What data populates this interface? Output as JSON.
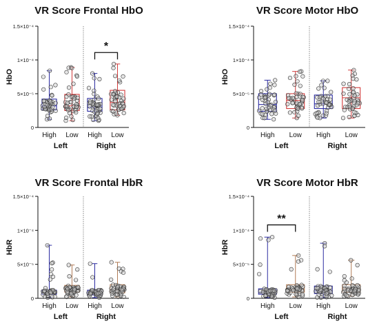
{
  "chart_data": [
    {
      "type": "box",
      "title": "VR Score Frontal HbO",
      "ylabel": "HbO",
      "ylim": [
        0,
        0.00015
      ],
      "y_ticks": [
        {
          "value": 0,
          "label": "0"
        },
        {
          "value": 5e-05,
          "label": "5×10⁻⁵"
        },
        {
          "value": 0.0001,
          "label": "1×10⁻⁴"
        },
        {
          "value": 0.00015,
          "label": "1.5×10⁻⁴"
        }
      ],
      "categories": [
        "High",
        "Low",
        "High",
        "Low"
      ],
      "groups": [
        "Left",
        "Right"
      ],
      "series_colors": [
        "#2a2aa0",
        "#d23a3a",
        "#2a2aa0",
        "#d23a3a"
      ],
      "series": [
        {
          "group": "Left",
          "category": "High",
          "min": 1.2e-05,
          "q1": 2.6e-05,
          "median": 3.2e-05,
          "q3": 4.2e-05,
          "max": 8.4e-05
        },
        {
          "group": "Left",
          "category": "Low",
          "min": 1e-05,
          "q1": 2.5e-05,
          "median": 3.2e-05,
          "q3": 4.9e-05,
          "max": 8.9e-05
        },
        {
          "group": "Right",
          "category": "High",
          "min": 1e-05,
          "q1": 2.4e-05,
          "median": 3e-05,
          "q3": 4.3e-05,
          "max": 8e-05
        },
        {
          "group": "Right",
          "category": "Low",
          "min": 1.8e-05,
          "q1": 2.6e-05,
          "median": 3.7e-05,
          "q3": 5.5e-05,
          "max": 9.4e-05
        }
      ],
      "significance": [
        {
          "from": 2,
          "to": 3,
          "label": "*",
          "y": 0.000111
        }
      ]
    },
    {
      "type": "box",
      "title": "VR Score Motor HbO",
      "ylabel": "HbO",
      "ylim": [
        0,
        0.00015
      ],
      "y_ticks": [
        {
          "value": 0,
          "label": "0"
        },
        {
          "value": 5e-05,
          "label": "5×10⁻⁵"
        },
        {
          "value": 0.0001,
          "label": "1×10⁻⁴"
        },
        {
          "value": 0.00015,
          "label": "1.5×10⁻⁴"
        }
      ],
      "categories": [
        "High",
        "Low",
        "High",
        "Low"
      ],
      "groups": [
        "Left",
        "Right"
      ],
      "series_colors": [
        "#2a2aa0",
        "#d23a3a",
        "#2a2aa0",
        "#d23a3a"
      ],
      "series": [
        {
          "group": "Left",
          "category": "High",
          "min": 1.2e-05,
          "q1": 2.4e-05,
          "median": 3.4e-05,
          "q3": 5e-05,
          "max": 7e-05
        },
        {
          "group": "Left",
          "category": "Low",
          "min": 1.4e-05,
          "q1": 2.8e-05,
          "median": 4e-05,
          "q3": 5e-05,
          "max": 8.3e-05
        },
        {
          "group": "Right",
          "category": "High",
          "min": 1.4e-05,
          "q1": 2.8e-05,
          "median": 3.5e-05,
          "q3": 4.8e-05,
          "max": 6.9e-05
        },
        {
          "group": "Right",
          "category": "Low",
          "min": 1.4e-05,
          "q1": 2.8e-05,
          "median": 4.4e-05,
          "q3": 5.9e-05,
          "max": 8.5e-05
        }
      ],
      "significance": []
    },
    {
      "type": "box",
      "title": "VR Score Frontal HbR",
      "ylabel": "HbR",
      "ylim": [
        0,
        0.00015
      ],
      "y_ticks": [
        {
          "value": 0,
          "label": "0"
        },
        {
          "value": 5e-05,
          "label": "5×10⁻⁵"
        },
        {
          "value": 0.0001,
          "label": "1×10⁻⁴"
        },
        {
          "value": 0.00015,
          "label": "1.5×10⁻⁴"
        }
      ],
      "categories": [
        "High",
        "Low",
        "High",
        "Low"
      ],
      "groups": [
        "Left",
        "Right"
      ],
      "series_colors": [
        "#2a2aa0",
        "#b07a55",
        "#2a2aa0",
        "#b07a55"
      ],
      "series": [
        {
          "group": "Left",
          "category": "High",
          "min": 1e-06,
          "q1": 6e-06,
          "median": 9e-06,
          "q3": 1.2e-05,
          "max": 7.8e-05
        },
        {
          "group": "Left",
          "category": "Low",
          "min": 2e-06,
          "q1": 9e-06,
          "median": 1.3e-05,
          "q3": 1.9e-05,
          "max": 4.9e-05
        },
        {
          "group": "Right",
          "category": "High",
          "min": 1e-06,
          "q1": 5e-06,
          "median": 8e-06,
          "q3": 1.2e-05,
          "max": 5.1e-05
        },
        {
          "group": "Right",
          "category": "Low",
          "min": 2e-06,
          "q1": 8e-06,
          "median": 1.2e-05,
          "q3": 2e-05,
          "max": 5.3e-05
        }
      ],
      "significance": []
    },
    {
      "type": "box",
      "title": "VR Score Motor HbR",
      "ylabel": "HbR",
      "ylim": [
        0,
        0.00015
      ],
      "y_ticks": [
        {
          "value": 0,
          "label": "0"
        },
        {
          "value": 5e-05,
          "label": "5×10⁻⁵"
        },
        {
          "value": 0.0001,
          "label": "1×10⁻⁴"
        },
        {
          "value": 0.00015,
          "label": "1.5×10⁻⁴"
        }
      ],
      "categories": [
        "High",
        "Low",
        "High",
        "Low"
      ],
      "groups": [
        "Left",
        "Right"
      ],
      "series_colors": [
        "#2a2aa0",
        "#b07a55",
        "#2a2aa0",
        "#b07a55"
      ],
      "series": [
        {
          "group": "Left",
          "category": "High",
          "min": 1e-06,
          "q1": 6e-06,
          "median": 9e-06,
          "q3": 1.4e-05,
          "max": 9e-05
        },
        {
          "group": "Left",
          "category": "Low",
          "min": 2e-06,
          "q1": 9e-06,
          "median": 1.3e-05,
          "q3": 2e-05,
          "max": 6.3e-05
        },
        {
          "group": "Right",
          "category": "High",
          "min": 1e-06,
          "q1": 7e-06,
          "median": 1.1e-05,
          "q3": 1.8e-05,
          "max": 8.1e-05
        },
        {
          "group": "Right",
          "category": "Low",
          "min": 3e-06,
          "q1": 9e-06,
          "median": 1.4e-05,
          "q3": 2e-05,
          "max": 5.6e-05
        }
      ],
      "significance": [
        {
          "from": 0,
          "to": 1,
          "label": "**",
          "y": 0.000108
        }
      ]
    }
  ]
}
